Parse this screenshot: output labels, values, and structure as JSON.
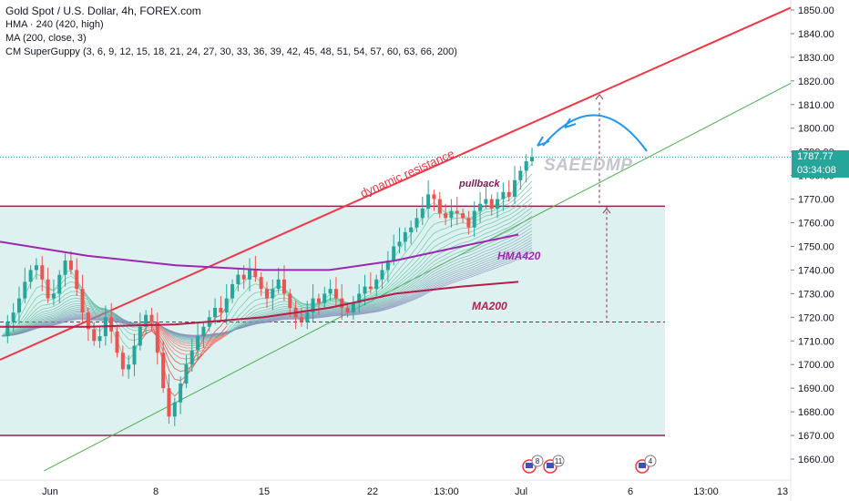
{
  "header": {
    "title": "Gold Spot / U.S. Dollar, 4h, FOREX.com",
    "indicators": [
      "HMA · 240 (420, high)",
      "MA (200, close, 3)",
      "CM SuperGuppy (3, 6, 9, 12, 15, 18, 21, 24, 27, 30, 33, 36, 39, 42, 45, 48, 51, 54, 57, 60, 63, 66, 200)"
    ]
  },
  "watermark": "SAEEDMP",
  "price_tags": {
    "last_price": "1787.77",
    "countdown": "03:34:08",
    "last_color": "#26a69a",
    "countdown_color": "#26a69a"
  },
  "annotations": {
    "dynamic_resistance": "dynamic resistance",
    "pullback": "pullback",
    "hma_label": "HMA420",
    "ma_label": "MA200"
  },
  "event_badges": [
    {
      "x_label": "Jul 1",
      "count": "8"
    },
    {
      "x_label": "Jul 2",
      "count": "11"
    },
    {
      "x_label": "Jul 6",
      "count": "4"
    }
  ],
  "chart_data": {
    "type": "candlestick",
    "y_axis": {
      "ticks": [
        1850,
        1840,
        1830,
        1820,
        1810,
        1800,
        1790,
        1780,
        1770,
        1760,
        1750,
        1740,
        1730,
        1720,
        1710,
        1700,
        1690,
        1680,
        1670,
        1660
      ],
      "tick_labels": [
        "1850.00",
        "1840.00",
        "1830.00",
        "1820.00",
        "1810.00",
        "1800.00",
        "1790.00",
        "1780.00",
        "1770.00",
        "1760.00",
        "1750.00",
        "1740.00",
        "1730.00",
        "1720.00",
        "1710.00",
        "1700.00",
        "1690.00",
        "1680.00",
        "1670.00",
        "1660.00"
      ],
      "ylim": [
        1655,
        1853
      ]
    },
    "x_axis": {
      "tick_labels": [
        "Jun",
        "8",
        "15",
        "22",
        "13:00",
        "Jul",
        "6",
        "13:00",
        "13"
      ]
    },
    "horizontal_levels": [
      1767,
      1670,
      1718
    ],
    "price_series": [
      1712,
      1718,
      1722,
      1728,
      1735,
      1740,
      1742,
      1736,
      1728,
      1730,
      1738,
      1744,
      1740,
      1732,
      1722,
      1715,
      1710,
      1712,
      1720,
      1714,
      1705,
      1698,
      1700,
      1708,
      1716,
      1721,
      1718,
      1705,
      1690,
      1678,
      1684,
      1692,
      1700,
      1706,
      1712,
      1716,
      1720,
      1724,
      1722,
      1728,
      1734,
      1738,
      1736,
      1740,
      1737,
      1732,
      1728,
      1732,
      1736,
      1730,
      1724,
      1720,
      1718,
      1722,
      1728,
      1726,
      1730,
      1732,
      1728,
      1724,
      1722,
      1726,
      1730,
      1733,
      1732,
      1736,
      1740,
      1744,
      1750,
      1752,
      1756,
      1758,
      1762,
      1766,
      1772,
      1770,
      1764,
      1762,
      1765,
      1764,
      1762,
      1758,
      1765,
      1768,
      1770,
      1766,
      1770,
      1773,
      1771,
      1778,
      1782,
      1786,
      1787.77
    ],
    "series": [
      {
        "name": "HMA420",
        "color": "#9c27b0",
        "points": [
          [
            0,
            1752
          ],
          [
            20,
            1746
          ],
          [
            40,
            1742
          ],
          [
            60,
            1740
          ],
          [
            75,
            1740
          ],
          [
            90,
            1744
          ],
          [
            105,
            1750
          ],
          [
            118,
            1755
          ]
        ]
      },
      {
        "name": "MA200",
        "color": "#b71c4a",
        "points": [
          [
            0,
            1716
          ],
          [
            20,
            1716
          ],
          [
            40,
            1717
          ],
          [
            60,
            1720
          ],
          [
            75,
            1724
          ],
          [
            90,
            1730
          ],
          [
            105,
            1733
          ],
          [
            118,
            1735
          ]
        ]
      }
    ],
    "trendlines": {
      "dynamic_resistance": {
        "color": "#f23645",
        "from": [
          0,
          1702
        ],
        "to": [
          180,
          1851
        ]
      },
      "support": {
        "color": "#4caf50",
        "from": [
          10,
          1655
        ],
        "to": [
          180,
          1819
        ]
      }
    },
    "projection_arc": {
      "color": "#2196f3",
      "peak": 1809
    }
  }
}
